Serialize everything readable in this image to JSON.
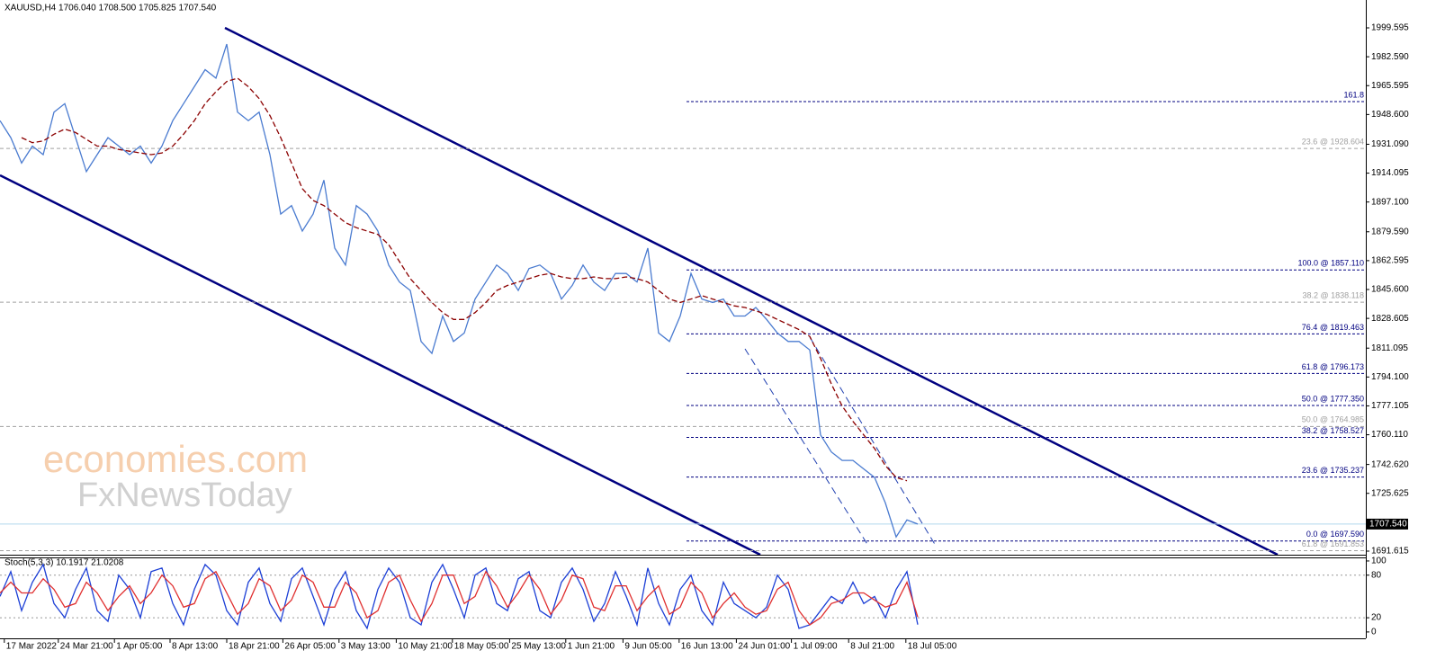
{
  "header": "XAUUSD,H4  1706.040 1708.500 1705.825 1707.540",
  "watermark": {
    "line1": "economies.com",
    "line2": "FxNewsToday"
  },
  "chart_data": [
    {
      "type": "line",
      "x": [
        0,
        1,
        2,
        3,
        4,
        5,
        6,
        7,
        8,
        9,
        10,
        11,
        12,
        13,
        14,
        15,
        16,
        17,
        18,
        19,
        20,
        21,
        22,
        23,
        24,
        25,
        26,
        27,
        28,
        29,
        30,
        31,
        32,
        33,
        34,
        35,
        36,
        37,
        38,
        39,
        40,
        41,
        42,
        43,
        44,
        45,
        46,
        47,
        48,
        49,
        50,
        51,
        52,
        53,
        54,
        55,
        56,
        57,
        58,
        59,
        60,
        61,
        62,
        63,
        64,
        65,
        66,
        67,
        68,
        69,
        70,
        71,
        72,
        73,
        74,
        75,
        76,
        77,
        78,
        79,
        80,
        81,
        82,
        83,
        84,
        85
      ],
      "series": [
        {
          "color": "#4a7bd0",
          "values": [
            1945,
            1935,
            1920,
            1930,
            1925,
            1950,
            1955,
            1935,
            1915,
            1925,
            1935,
            1930,
            1925,
            1930,
            1920,
            1930,
            1945,
            1955,
            1965,
            1975,
            1970,
            1990,
            1950,
            1945,
            1950,
            1925,
            1890,
            1895,
            1880,
            1890,
            1910,
            1870,
            1860,
            1895,
            1890,
            1880,
            1860,
            1850,
            1845,
            1815,
            1808,
            1830,
            1815,
            1820,
            1840,
            1850,
            1860,
            1855,
            1845,
            1858,
            1860,
            1855,
            1840,
            1848,
            1860,
            1850,
            1845,
            1855,
            1855,
            1850,
            1870,
            1820,
            1815,
            1830,
            1855,
            1840,
            1838,
            1840,
            1830,
            1830,
            1835,
            1828,
            1820,
            1815,
            1815,
            1810,
            1760,
            1750,
            1745,
            1745,
            1740,
            1735,
            1720,
            1700,
            1710,
            1707.54
          ]
        },
        {
          "color": "#8b0000",
          "dashed": true,
          "values": [
            null,
            null,
            1935,
            1932,
            1933,
            1937,
            1940,
            1938,
            1934,
            1930,
            1930,
            1928,
            1927,
            1926,
            1925,
            1926,
            1930,
            1937,
            1945,
            1955,
            1962,
            1968,
            1970,
            1965,
            1958,
            1948,
            1935,
            1920,
            1905,
            1898,
            1895,
            1890,
            1885,
            1882,
            1880,
            1878,
            1872,
            1862,
            1852,
            1845,
            1838,
            1832,
            1828,
            1828,
            1832,
            1838,
            1845,
            1848,
            1850,
            1852,
            1854,
            1855,
            1853,
            1852,
            1852,
            1853,
            1852,
            1852,
            1853,
            1852,
            1850,
            1845,
            1840,
            1838,
            1840,
            1842,
            1840,
            1838,
            1836,
            1835,
            1833,
            1831,
            1828,
            1825,
            1822,
            1818,
            1805,
            1790,
            1777,
            1768,
            1760,
            1752,
            1742,
            1735,
            1733,
            null
          ]
        }
      ],
      "xlim": [
        0,
        126.5
      ],
      "ylim": [
        1689.5,
        2016.0
      ],
      "yticks": [
        1999.595,
        {
          "value": 1982.59,
          "label": "1982.590"
        },
        1965.595,
        {
          "value": 1948.6,
          "label": "1948.600"
        },
        {
          "value": 1931.09,
          "label": "1931.090"
        },
        1914.095,
        {
          "value": 1897.1,
          "label": "1897.100"
        },
        {
          "value": 1879.59,
          "label": "1879.590"
        },
        1862.595,
        {
          "value": 1845.6,
          "label": "1845.600"
        },
        1828.605,
        1811.095,
        {
          "value": 1794.1,
          "label": "1794.100"
        },
        1777.105,
        {
          "value": 1760.11,
          "label": "1760.110"
        },
        {
          "value": 1742.62,
          "label": "1742.620"
        },
        1725.625,
        1691.615
      ],
      "last_price": {
        "value": 1707.54,
        "label": "1707.540"
      },
      "fib_levels": [
        {
          "label": "161.8",
          "price": 1956.2,
          "style": "blue"
        },
        {
          "label": "23.6 @ 1928.604",
          "price": 1928.604,
          "style": "gray"
        },
        {
          "label": "100.0 @ 1857.110",
          "price": 1857.11,
          "style": "blue"
        },
        {
          "label": "38.2 @ 1838.118",
          "price": 1838.118,
          "style": "gray"
        },
        {
          "label": "76.4 @ 1819.463",
          "price": 1819.463,
          "style": "blue"
        },
        {
          "label": "61.8 @ 1796.173",
          "price": 1796.173,
          "style": "blue"
        },
        {
          "label": "50.0 @ 1777.350",
          "price": 1777.35,
          "style": "blue"
        },
        {
          "label": "50.0 @ 1764.985",
          "price": 1764.985,
          "style": "gray"
        },
        {
          "label": "38.2 @ 1758.527",
          "price": 1758.527,
          "style": "blue"
        },
        {
          "label": "23.6 @ 1735.237",
          "price": 1735.237,
          "style": "blue"
        },
        {
          "label": "0.0 @ 1697.590",
          "price": 1697.59,
          "style": "blue"
        },
        {
          "label": "61.8 @ 1691.853",
          "price": 1691.853,
          "style": "gray"
        }
      ]
    },
    {
      "type": "line",
      "title": "Stoch(5,3,3) 10.1917 21.0208",
      "x": [
        0,
        1,
        2,
        3,
        4,
        5,
        6,
        7,
        8,
        9,
        10,
        11,
        12,
        13,
        14,
        15,
        16,
        17,
        18,
        19,
        20,
        21,
        22,
        23,
        24,
        25,
        26,
        27,
        28,
        29,
        30,
        31,
        32,
        33,
        34,
        35,
        36,
        37,
        38,
        39,
        40,
        41,
        42,
        43,
        44,
        45,
        46,
        47,
        48,
        49,
        50,
        51,
        52,
        53,
        54,
        55,
        56,
        57,
        58,
        59,
        60,
        61,
        62,
        63,
        64,
        65,
        66,
        67,
        68,
        69,
        70,
        71,
        72,
        73,
        74,
        75,
        76,
        77,
        78,
        79,
        80,
        81,
        82,
        83,
        84,
        85
      ],
      "series": [
        {
          "color": "#1c3fd6",
          "values": [
            50,
            85,
            30,
            70,
            95,
            40,
            20,
            60,
            90,
            30,
            15,
            80,
            60,
            20,
            85,
            90,
            40,
            10,
            60,
            95,
            80,
            30,
            10,
            70,
            90,
            40,
            15,
            75,
            90,
            50,
            10,
            60,
            85,
            30,
            5,
            60,
            90,
            70,
            20,
            10,
            70,
            95,
            60,
            20,
            80,
            90,
            40,
            30,
            75,
            85,
            30,
            20,
            70,
            90,
            60,
            15,
            40,
            85,
            50,
            10,
            90,
            40,
            10,
            60,
            80,
            30,
            10,
            70,
            40,
            30,
            20,
            35,
            80,
            60,
            5,
            10,
            30,
            50,
            40,
            70,
            40,
            50,
            20,
            60,
            85,
            10.1917
          ]
        },
        {
          "color": "#e03030",
          "values": [
            55,
            70,
            55,
            55,
            75,
            60,
            35,
            40,
            70,
            55,
            30,
            50,
            65,
            40,
            55,
            80,
            65,
            35,
            40,
            75,
            85,
            55,
            25,
            40,
            75,
            65,
            30,
            45,
            80,
            70,
            35,
            35,
            70,
            55,
            20,
            30,
            70,
            80,
            45,
            15,
            40,
            80,
            80,
            40,
            50,
            85,
            65,
            35,
            55,
            80,
            60,
            25,
            45,
            80,
            75,
            35,
            30,
            65,
            65,
            30,
            50,
            65,
            25,
            35,
            70,
            55,
            20,
            40,
            55,
            35,
            25,
            30,
            60,
            70,
            30,
            10,
            20,
            40,
            45,
            55,
            55,
            45,
            35,
            40,
            70,
            21.0208
          ]
        }
      ],
      "xlim": [
        0,
        126.5
      ],
      "ylim": [
        -9,
        105
      ],
      "yticks": [
        100,
        80,
        20,
        0
      ],
      "xticks": [
        {
          "value": 0.4,
          "label": "17 Mar 2022"
        },
        {
          "value": 5.4,
          "label": "24 Mar 21:00"
        },
        {
          "value": 10.6,
          "label": "1 Apr 05:00"
        },
        {
          "value": 15.75,
          "label": "8 Apr 13:00"
        },
        {
          "value": 21,
          "label": "18 Apr 21:00"
        },
        {
          "value": 26.2,
          "label": "26 Apr 05:00"
        },
        {
          "value": 31.4,
          "label": "3 May 13:00"
        },
        {
          "value": 36.7,
          "label": "10 May 21:00"
        },
        {
          "value": 41.9,
          "label": "18 May 05:00"
        },
        {
          "value": 47.2,
          "label": "25 May 13:00"
        },
        {
          "value": 52.4,
          "label": "1 Jun 21:00"
        },
        {
          "value": 57.7,
          "label": "9 Jun 05:00"
        },
        {
          "value": 62.9,
          "label": "16 Jun 13:00"
        },
        {
          "value": 68.2,
          "label": "24 Jun 01:00"
        },
        {
          "value": 73.3,
          "label": "1 Jul 09:00"
        },
        {
          "value": 78.6,
          "label": "8 Jul 21:00"
        },
        {
          "value": 83.9,
          "label": "18 Jul 05:00"
        }
      ]
    }
  ]
}
